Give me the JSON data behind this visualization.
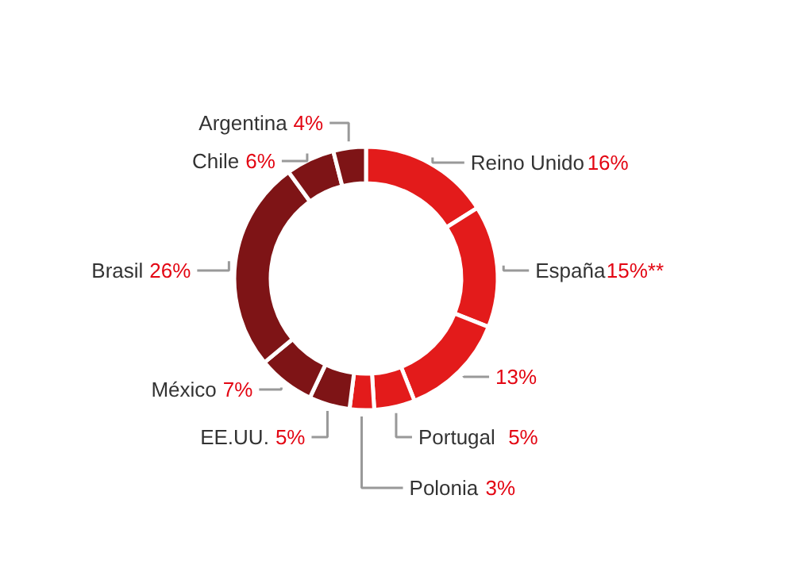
{
  "chart_data": {
    "type": "donut",
    "categories": [
      "Reino Unido",
      "España",
      null,
      "Portugal",
      "Polonia",
      "EE.UU.",
      "México",
      "Brasil",
      "Chile",
      "Argentina"
    ],
    "values": [
      16,
      15,
      13,
      5,
      3,
      5,
      7,
      26,
      6,
      4
    ],
    "value_labels": [
      "16%",
      "15%**",
      "13%",
      "5%",
      "3%",
      "5%",
      "7%",
      "26%",
      "6%",
      "4%"
    ],
    "colors": [
      "#e31b1b",
      "#e31b1b",
      "#e31b1b",
      "#e31b1b",
      "#e31b1b",
      "#7e1416",
      "#7e1416",
      "#7e1416",
      "#7e1416",
      "#7e1416"
    ]
  }
}
